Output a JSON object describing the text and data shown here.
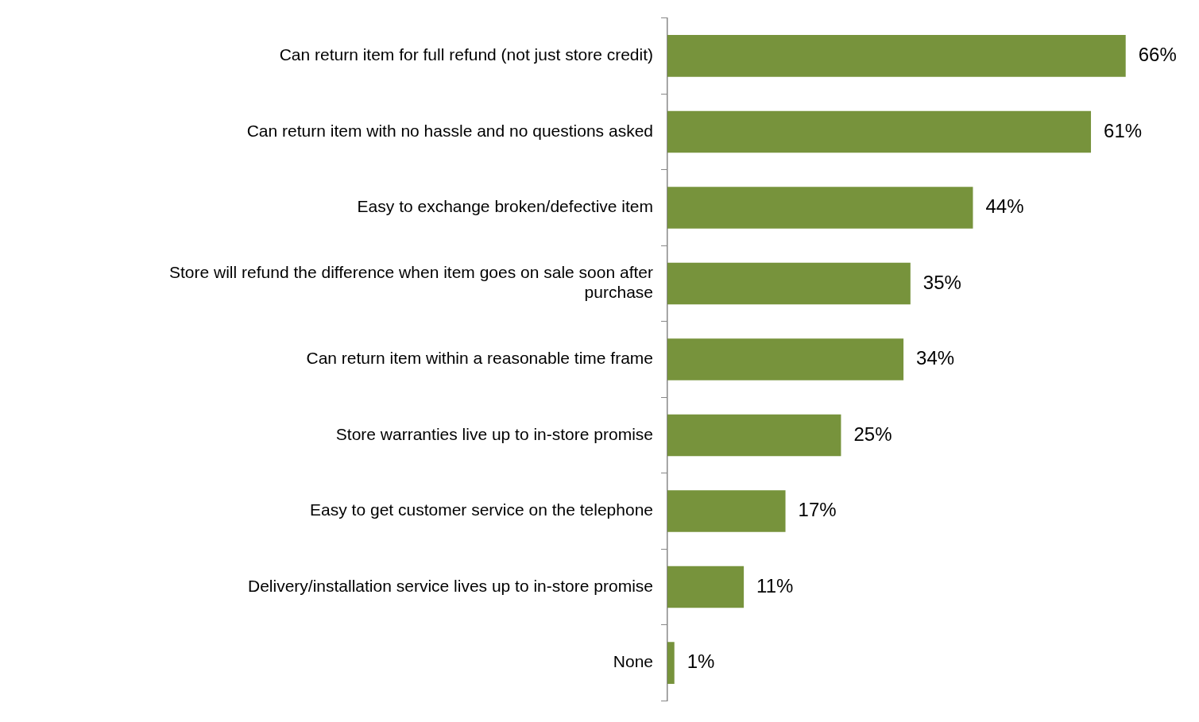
{
  "chart_data": {
    "type": "bar",
    "orientation": "horizontal",
    "categories": [
      "Can return item for full refund (not just store credit)",
      "Can return item with no hassle and no questions asked",
      "Easy to exchange broken/defective item",
      "Store will refund the difference when item goes on sale soon after purchase",
      "Can return item within a reasonable time frame",
      "Store warranties live up to in-store promise",
      "Easy to get customer service on the telephone",
      "Delivery/installation service lives up to in-store promise",
      "None"
    ],
    "values": [
      66,
      61,
      44,
      35,
      34,
      25,
      17,
      11,
      1
    ],
    "value_labels": [
      "66%",
      "61%",
      "44%",
      "35%",
      "34%",
      "25%",
      "17%",
      "11%",
      "1%"
    ],
    "color": "#77933c"
  }
}
